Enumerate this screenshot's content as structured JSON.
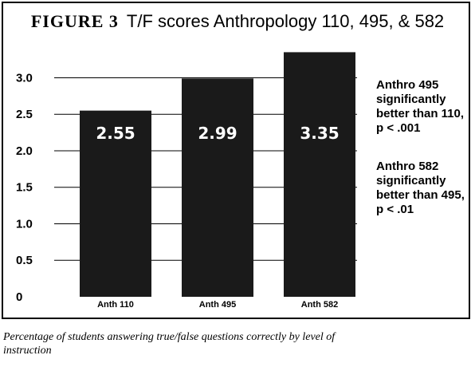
{
  "figure_label": "FIGURE 3",
  "title": "T/F scores Anthropology 110, 495, & 582",
  "caption": "Percentage of students answering true/false questions correctly by level of instruction",
  "annotations": [
    {
      "text": "Anthro 495 significantly better than 110, p < .001"
    },
    {
      "text": "Anthro 582 significantly better than 495, p < .01"
    }
  ],
  "chart_data": {
    "type": "bar",
    "title": "T/F scores Anthropology 110, 495, & 582",
    "xlabel": "",
    "ylabel": "",
    "categories": [
      "Anth 110",
      "Anth 495",
      "Anth 582"
    ],
    "values": [
      2.55,
      2.99,
      3.35
    ],
    "data_labels": [
      "2.55",
      "2.99",
      "3.35"
    ],
    "ylim": [
      0,
      3.3
    ],
    "yticks": [
      0,
      0.5,
      1.0,
      1.5,
      2.0,
      2.5,
      3.0
    ],
    "ytick_labels": [
      "0",
      "0.5",
      "1.0",
      "1.5",
      "2.0",
      "2.5",
      "3.0"
    ],
    "grid": true,
    "bar_color": "#1a1a1a",
    "label_color": "#ffffff"
  }
}
